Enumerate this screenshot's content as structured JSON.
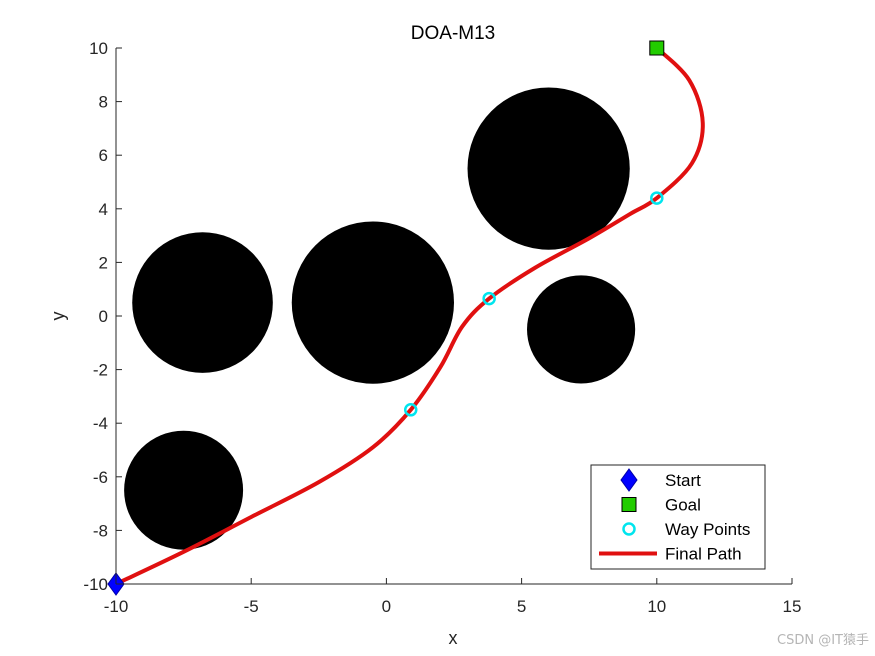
{
  "chart_data": {
    "type": "scatter",
    "title": "DOA-M13",
    "xlabel": "x",
    "ylabel": "y",
    "xlim": [
      -10,
      15
    ],
    "ylim": [
      -10,
      10
    ],
    "x_ticks": [
      -10,
      -5,
      0,
      5,
      10,
      15
    ],
    "y_ticks": [
      -10,
      -8,
      -6,
      -4,
      -2,
      0,
      2,
      4,
      6,
      8,
      10
    ],
    "grid": false,
    "legend_position": "bottom-right",
    "obstacles": [
      {
        "cx": -6.8,
        "cy": 0.5,
        "r": 2.6
      },
      {
        "cx": -0.5,
        "cy": 0.5,
        "r": 3.0
      },
      {
        "cx": 6.0,
        "cy": 5.5,
        "r": 3.0
      },
      {
        "cx": 7.2,
        "cy": -0.5,
        "r": 2.0
      },
      {
        "cx": -7.5,
        "cy": -6.5,
        "r": 2.2
      }
    ],
    "series": [
      {
        "name": "Start",
        "marker": "diamond",
        "color": "#0000ff",
        "points": [
          [
            -10,
            -10
          ]
        ]
      },
      {
        "name": "Goal",
        "marker": "square",
        "color": "#22cc00",
        "points": [
          [
            10,
            10
          ]
        ]
      },
      {
        "name": "Way Points",
        "marker": "circle",
        "color": "#00e5ee",
        "points": [
          [
            0.9,
            -3.5
          ],
          [
            3.8,
            0.65
          ],
          [
            10.0,
            4.4
          ]
        ]
      },
      {
        "name": "Final Path",
        "marker": "line",
        "color": "#e01010",
        "points": [
          [
            -10,
            -10
          ],
          [
            -7.5,
            -8.8
          ],
          [
            -5,
            -7.5
          ],
          [
            -2.5,
            -6.2
          ],
          [
            -0.5,
            -4.9
          ],
          [
            0.9,
            -3.5
          ],
          [
            2.0,
            -1.9
          ],
          [
            2.8,
            -0.4
          ],
          [
            3.8,
            0.65
          ],
          [
            5.5,
            1.8
          ],
          [
            7.5,
            2.9
          ],
          [
            9.0,
            3.8
          ],
          [
            10.0,
            4.4
          ],
          [
            11.3,
            5.7
          ],
          [
            11.7,
            7.2
          ],
          [
            11.2,
            8.8
          ],
          [
            10.0,
            10
          ]
        ]
      }
    ]
  },
  "watermark": "CSDN @IT猿手"
}
